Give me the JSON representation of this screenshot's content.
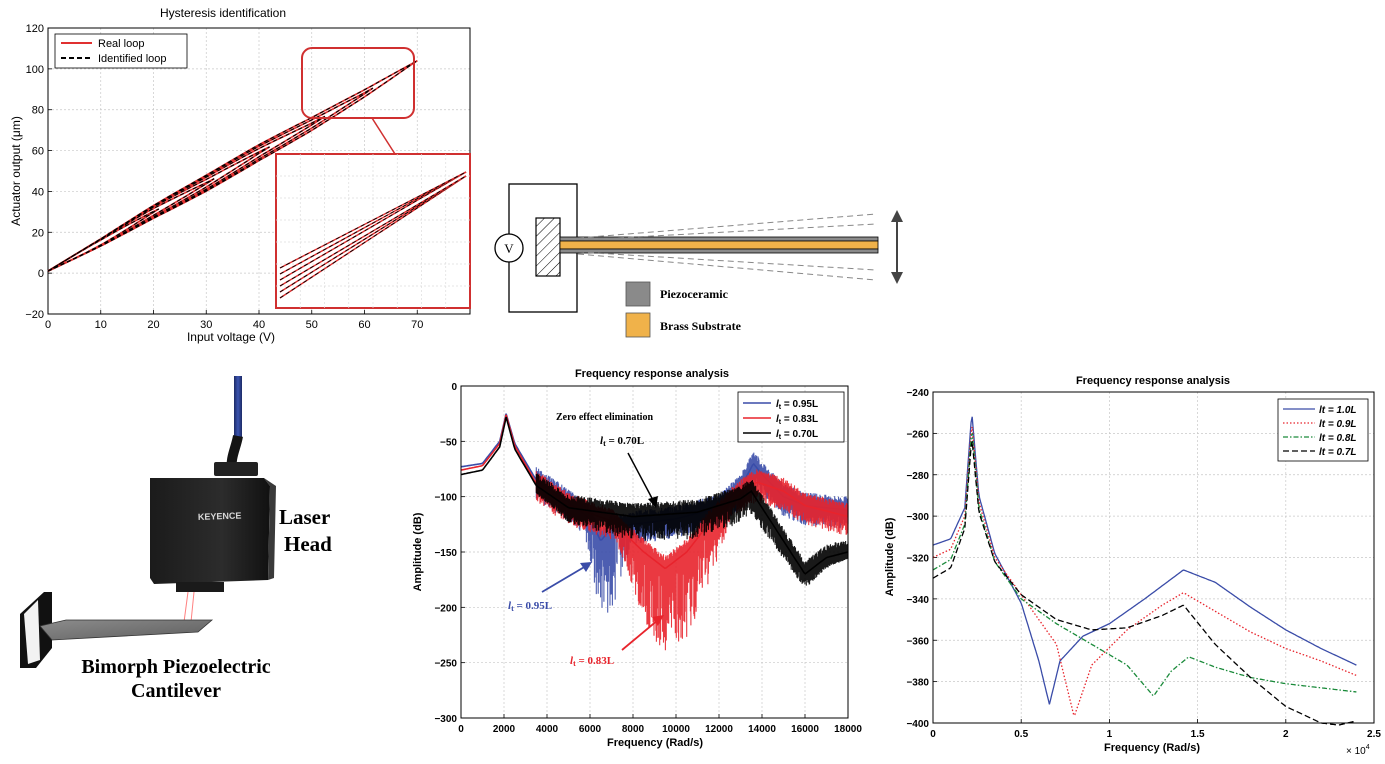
{
  "colors": {
    "real_loop": "#e03030",
    "identified_loop": "#000000",
    "blue": "#3a4ca8",
    "red": "#e8242c",
    "black": "#000000",
    "green": "#1a8a3a",
    "piezoceramic": "#8a8a8a",
    "brass": "#f0b24a",
    "grid": "#c8c8c8"
  },
  "hysteresis": {
    "chart_data": {
      "type": "line",
      "title": "Hysteresis identification",
      "xlabel": "Input voltage (V)",
      "ylabel": "Actuator output (μm)",
      "xlim": [
        0,
        80
      ],
      "ylim": [
        -20,
        120
      ],
      "x_ticks": [
        "0",
        "10",
        "20",
        "30",
        "40",
        "50",
        "60",
        "70"
      ],
      "y_ticks": [
        "−20",
        "0",
        "20",
        "40",
        "60",
        "80",
        "100",
        "120"
      ],
      "grid": true,
      "legend_position": "top-left",
      "series": [
        {
          "name": "Real loop",
          "x": [
            0,
            10,
            20,
            30,
            40,
            50,
            60,
            70
          ],
          "y": [
            1,
            15,
            30,
            44,
            59,
            73,
            88,
            104
          ]
        },
        {
          "name": "Identified loop",
          "x": [
            0,
            10,
            20,
            30,
            40,
            50,
            60,
            70
          ],
          "y": [
            1,
            15,
            30,
            44,
            59,
            73,
            88,
            104
          ]
        }
      ]
    }
  },
  "schematic": {
    "voltage_symbol": "V",
    "legend": [
      "Piezoceramic",
      "Brass Substrate"
    ]
  },
  "photo": {
    "laser_label_1": "Laser",
    "laser_label_2": "Head",
    "cantilever_label_1": "Bimorph Piezoelectric",
    "cantilever_label_2": "Cantilever",
    "brand": "KEYENCE"
  },
  "freq1": {
    "chart_data": {
      "type": "line",
      "title": "Frequency response analysis",
      "xlabel": "Frequency (Rad/s)",
      "ylabel": "Amplitude (dB)",
      "xlim": [
        0,
        18000
      ],
      "ylim": [
        -300,
        0
      ],
      "x_ticks": [
        "0",
        "2000",
        "4000",
        "6000",
        "8000",
        "10000",
        "12000",
        "14000",
        "16000",
        "18000"
      ],
      "y_ticks": [
        "0",
        "−50",
        "−100",
        "−150",
        "−200",
        "−250",
        "−300"
      ],
      "grid": true,
      "legend_position": "top-right",
      "legend_prefix": "l",
      "legend_sub": "t",
      "series": [
        {
          "name": " = 0.95L",
          "x": [
            0,
            1000,
            1800,
            2100,
            2500,
            3500,
            5000,
            6000,
            6500,
            7000,
            8000,
            10000,
            12000,
            13000,
            13600,
            14000,
            15000,
            16000,
            18000
          ],
          "y": [
            -73,
            -70,
            -50,
            -25,
            -52,
            -85,
            -105,
            -120,
            -140,
            -128,
            -125,
            -120,
            -110,
            -92,
            -70,
            -80,
            -100,
            -108,
            -112
          ]
        },
        {
          "name": " = 0.83L",
          "x": [
            0,
            1000,
            1800,
            2100,
            2500,
            3500,
            5000,
            7000,
            8500,
            9500,
            10500,
            11500,
            12500,
            13400,
            13800,
            15000,
            16000,
            18000
          ],
          "y": [
            -76,
            -72,
            -52,
            -26,
            -54,
            -88,
            -108,
            -122,
            -150,
            -165,
            -150,
            -125,
            -105,
            -90,
            -87,
            -95,
            -108,
            -118
          ]
        },
        {
          "name": " = 0.70L",
          "x": [
            0,
            1000,
            1800,
            2100,
            2500,
            3500,
            5000,
            8000,
            11000,
            13000,
            13500,
            14000,
            15000,
            16000,
            17000,
            18000
          ],
          "y": [
            -80,
            -76,
            -55,
            -28,
            -57,
            -90,
            -110,
            -118,
            -114,
            -102,
            -95,
            -110,
            -140,
            -170,
            -155,
            -150
          ]
        }
      ],
      "annotations": [
        "Zero effect elimination",
        "l",
        "t",
        " = 0.70L",
        "l",
        "t",
        " = 0.95L",
        "l",
        "t",
        " = 0.83L"
      ]
    }
  },
  "freq2": {
    "chart_data": {
      "type": "line",
      "title": "Frequency response analysis",
      "xlabel": "Frequency (Rad/s)",
      "ylabel": "Amplitude (dB)",
      "xlim": [
        0,
        2.5
      ],
      "ylim": [
        -400,
        -240
      ],
      "x_multiplier": "× 10",
      "x_multiplier_exp": "4",
      "x_ticks": [
        "0",
        "0.5",
        "1",
        "1.5",
        "2",
        "2.5"
      ],
      "y_ticks": [
        "−240",
        "−260",
        "−280",
        "−300",
        "−320",
        "−340",
        "−360",
        "−380",
        "−400"
      ],
      "grid": true,
      "legend_position": "top-right",
      "series": [
        {
          "name": "lt = 1.0L",
          "x": [
            0,
            0.1,
            0.18,
            0.22,
            0.26,
            0.35,
            0.5,
            0.6,
            0.66,
            0.72,
            0.85,
            1.0,
            1.2,
            1.42,
            1.6,
            1.8,
            2.0,
            2.2,
            2.4
          ],
          "y": [
            -314,
            -311,
            -296,
            -250,
            -290,
            -318,
            -342,
            -370,
            -391,
            -370,
            -358,
            -352,
            -340,
            -326,
            -332,
            -344,
            -355,
            -364,
            -372
          ]
        },
        {
          "name": "lt = 0.9L",
          "x": [
            0,
            0.1,
            0.18,
            0.22,
            0.26,
            0.35,
            0.5,
            0.7,
            0.8,
            0.9,
            1.1,
            1.3,
            1.42,
            1.6,
            1.8,
            2.0,
            2.2,
            2.4
          ],
          "y": [
            -320,
            -316,
            -300,
            -255,
            -293,
            -320,
            -338,
            -362,
            -397,
            -372,
            -355,
            -343,
            -337,
            -346,
            -356,
            -364,
            -370,
            -377
          ]
        },
        {
          "name": "lt = 0.8L",
          "x": [
            0,
            0.1,
            0.18,
            0.22,
            0.26,
            0.35,
            0.5,
            0.7,
            0.9,
            1.1,
            1.25,
            1.35,
            1.45,
            1.6,
            1.8,
            2.0,
            2.2,
            2.4
          ],
          "y": [
            -326,
            -321,
            -304,
            -258,
            -296,
            -322,
            -340,
            -352,
            -362,
            -372,
            -387,
            -375,
            -368,
            -373,
            -378,
            -381,
            -383,
            -385
          ]
        },
        {
          "name": "lt = 0.7L",
          "x": [
            0,
            0.1,
            0.18,
            0.22,
            0.26,
            0.35,
            0.5,
            0.7,
            0.9,
            1.1,
            1.3,
            1.42,
            1.6,
            1.8,
            2.0,
            2.2,
            2.3,
            2.4
          ],
          "y": [
            -330,
            -325,
            -306,
            -262,
            -298,
            -322,
            -338,
            -350,
            -355,
            -354,
            -348,
            -343,
            -362,
            -378,
            -392,
            -400,
            -401,
            -399
          ]
        }
      ]
    }
  }
}
